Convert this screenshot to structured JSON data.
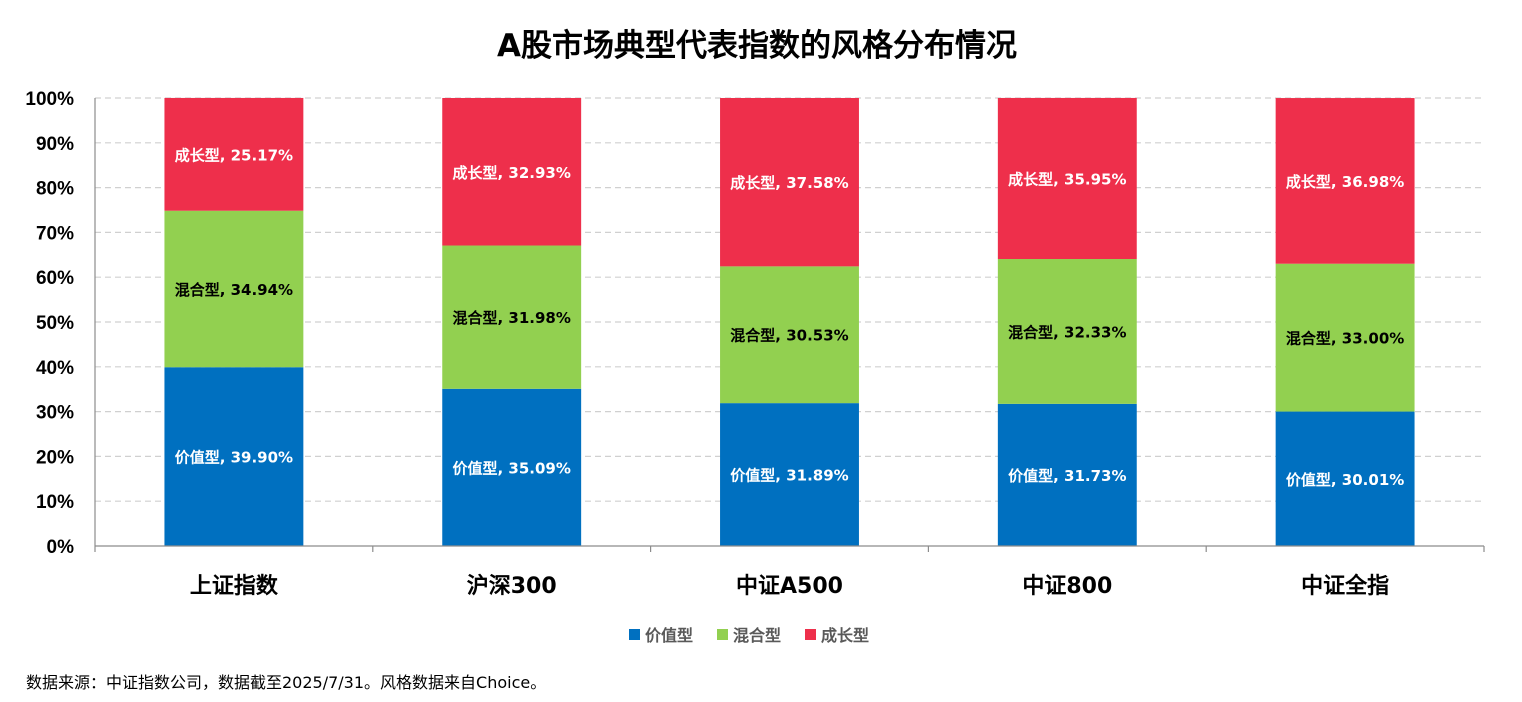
{
  "chart_data": {
    "type": "bar",
    "stacked": true,
    "percent_stacked": true,
    "title": "A股市场典型代表指数的风格分布情况",
    "categories": [
      "上证指数",
      "沪深300",
      "中证A500",
      "中证800",
      "中证全指"
    ],
    "series": [
      {
        "name": "价值型",
        "color": "#0070C0",
        "label_color": "#FFFFFF",
        "values": [
          39.9,
          35.09,
          31.89,
          31.73,
          30.01
        ]
      },
      {
        "name": "混合型",
        "color": "#92D050",
        "label_color": "#000000",
        "values": [
          34.94,
          31.98,
          30.53,
          32.33,
          33.0
        ]
      },
      {
        "name": "成长型",
        "color": "#EE2F4B",
        "label_color": "#FFFFFF",
        "values": [
          25.17,
          32.93,
          37.58,
          35.95,
          36.98
        ]
      }
    ],
    "y_ticks": [
      "0%",
      "10%",
      "20%",
      "30%",
      "40%",
      "50%",
      "60%",
      "70%",
      "80%",
      "90%",
      "100%"
    ],
    "ylim": [
      0,
      100
    ],
    "grid": true,
    "legend_position": "bottom",
    "data_labels": [
      [
        "价值型, 39.90%",
        "价值型, 35.09%",
        "价值型, 31.89%",
        "价值型, 31.73%",
        "价值型, 30.01%"
      ],
      [
        "混合型, 34.94%",
        "混合型, 31.98%",
        "混合型, 30.53%",
        "混合型, 32.33%",
        "混合型, 33.00%"
      ],
      [
        "成长型, 25.17%",
        "成长型, 32.93%",
        "成长型, 37.58%",
        "成长型, 35.95%",
        "成长型, 36.98%"
      ]
    ]
  },
  "source_note": "数据来源：中证指数公司，数据截至2025/7/31。风格数据来自Choice。"
}
